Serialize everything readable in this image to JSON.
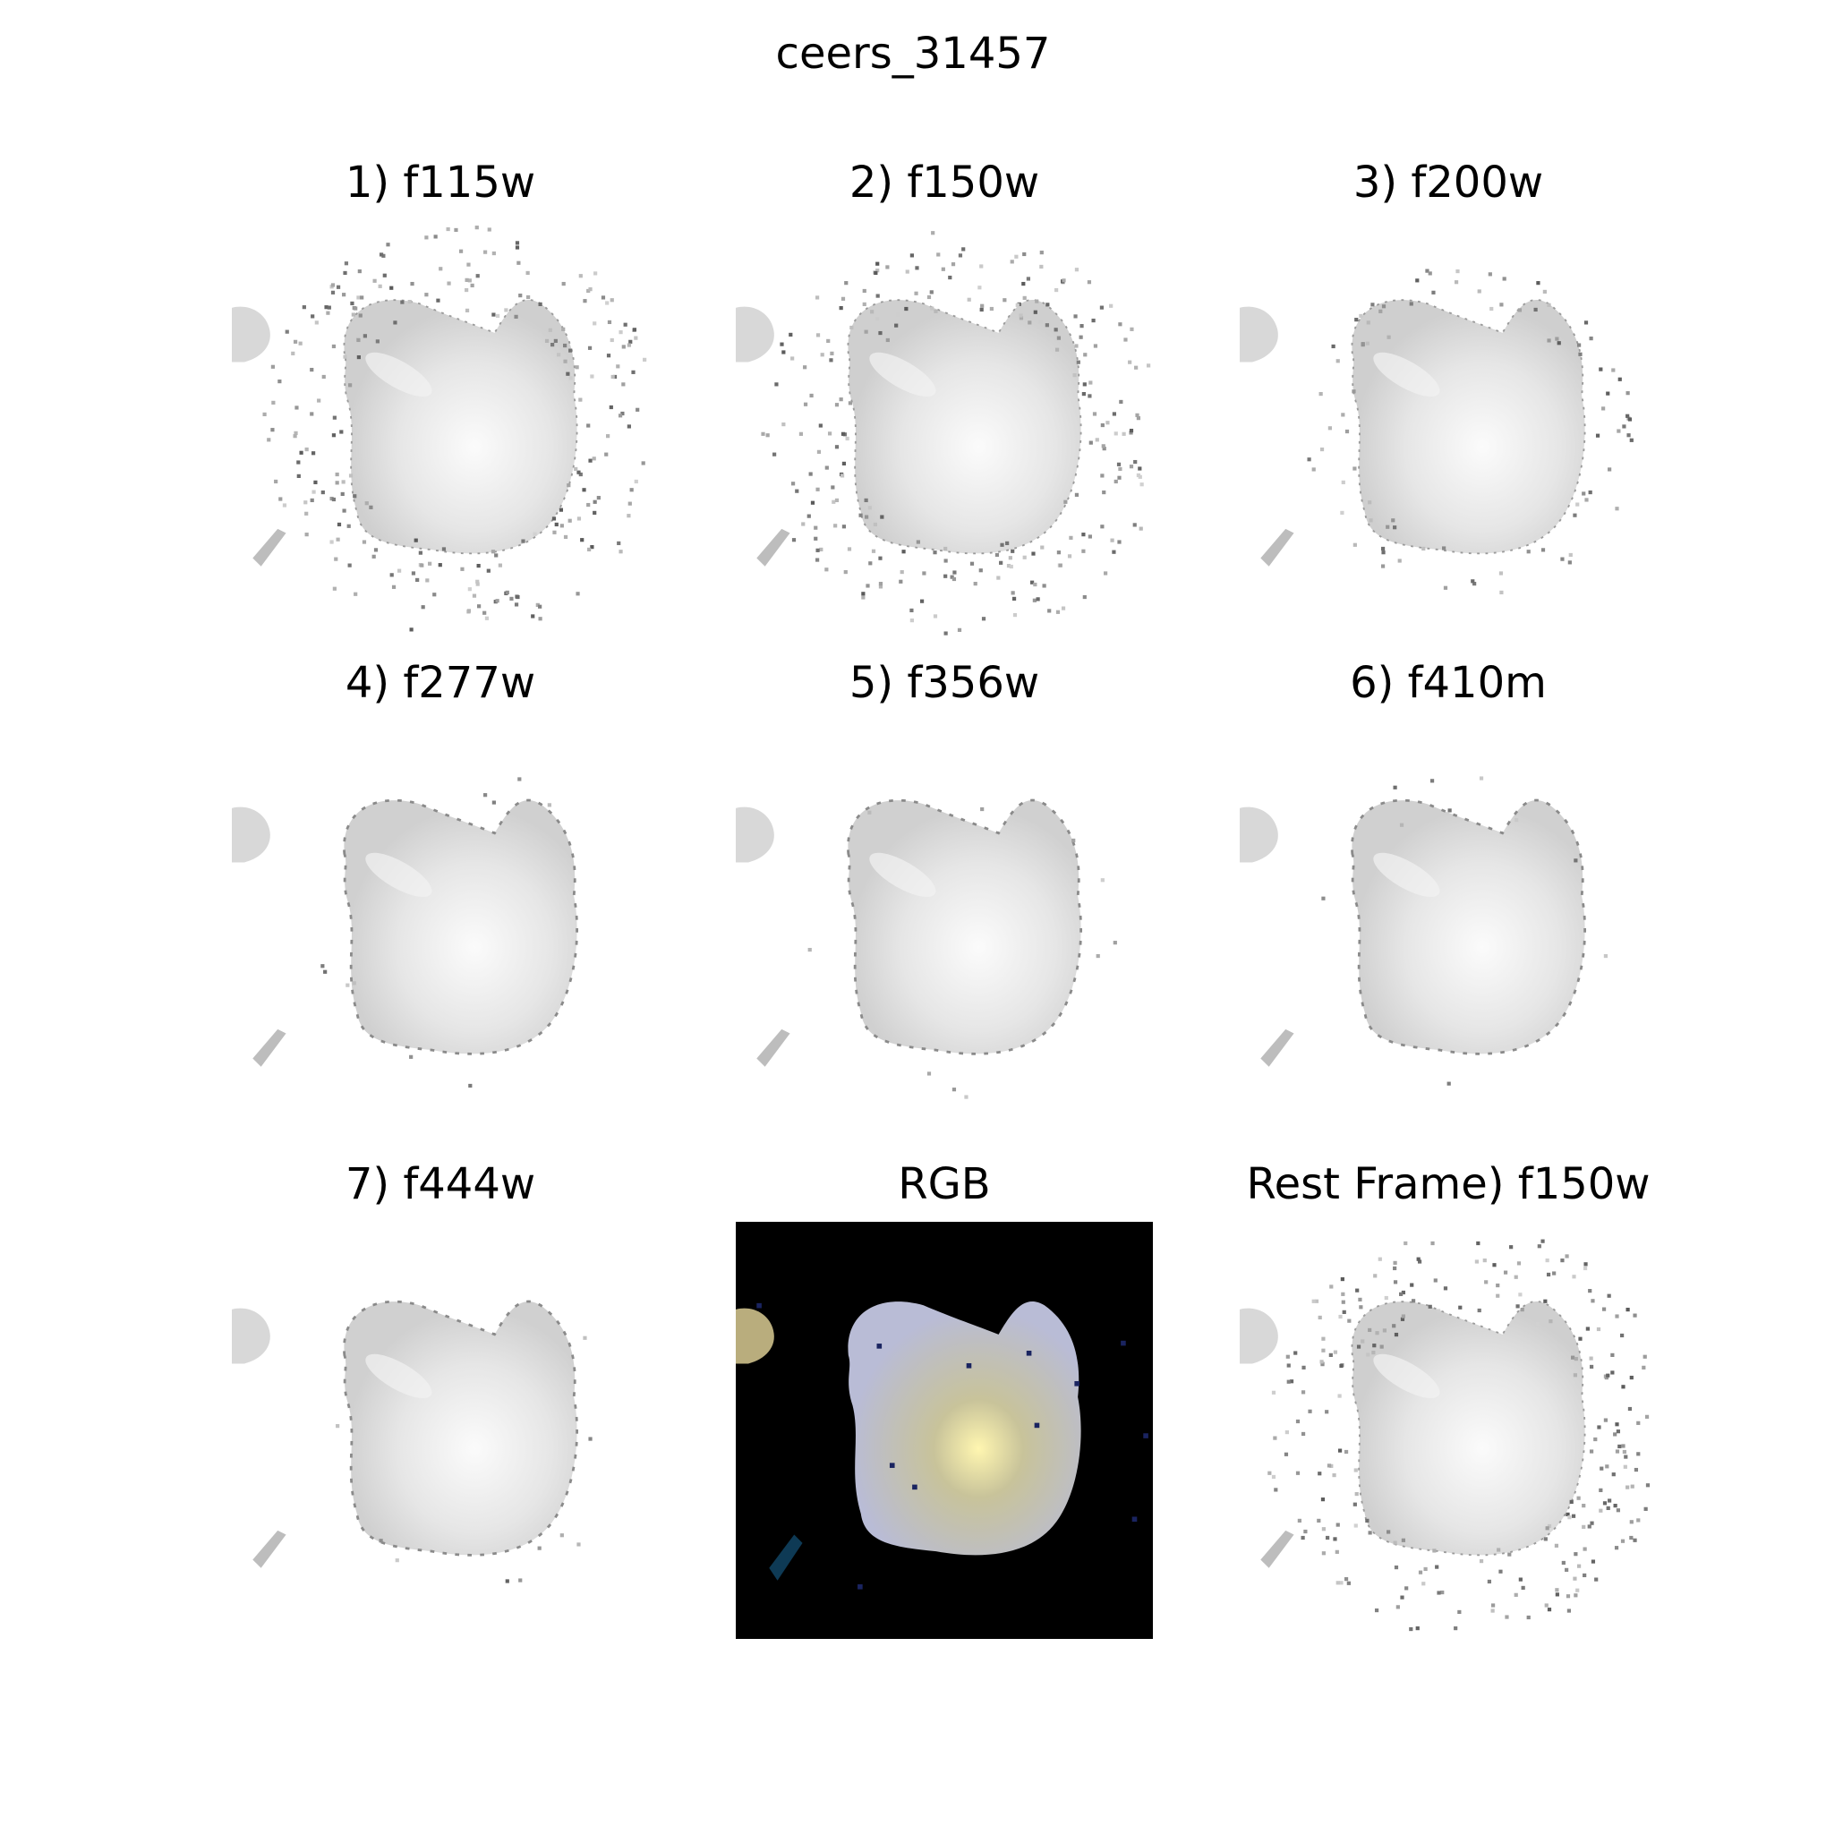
{
  "figure": {
    "title": "ceers_31457",
    "panels": [
      {
        "title": "1) f115w",
        "kind": "noisy"
      },
      {
        "title": "2) f150w",
        "kind": "noisy"
      },
      {
        "title": "3) f200w",
        "kind": "mid"
      },
      {
        "title": "4) f277w",
        "kind": "smooth"
      },
      {
        "title": "5) f356w",
        "kind": "smooth"
      },
      {
        "title": "6) f410m",
        "kind": "smooth"
      },
      {
        "title": "7) f444w",
        "kind": "smooth"
      },
      {
        "title": "RGB",
        "kind": "rgb"
      },
      {
        "title": "Rest Frame) f150w",
        "kind": "noisy"
      }
    ]
  },
  "colors": {
    "background": "#ffffff",
    "rgb_background": "#000000",
    "galaxy_gray": "#e6e6e6",
    "galaxy_core": "#fbfbfb",
    "rgb_core": "#fff6b0",
    "rgb_outer": "#b9bcd6"
  }
}
